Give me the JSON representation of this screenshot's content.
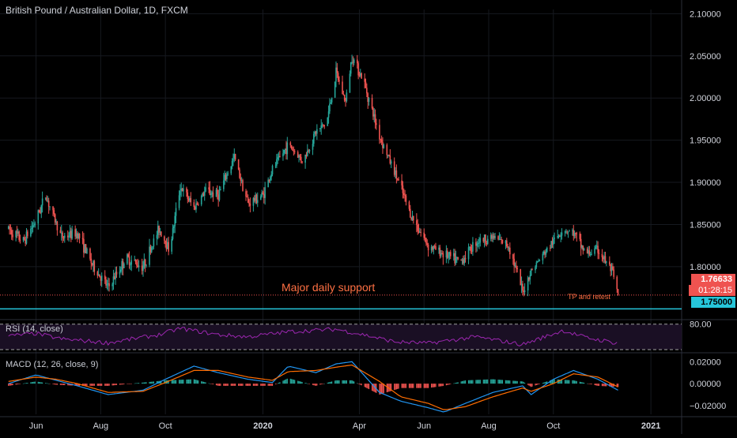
{
  "title": "British Pound / Australian Dollar, 1D, FXCM",
  "chart_data": {
    "type": "candlestick",
    "title": "British Pound / Australian Dollar, 1D, FXCM",
    "x_labels": [
      "Jun",
      "Aug",
      "Oct",
      "2020",
      "Apr",
      "Jun",
      "Aug",
      "Oct",
      "2021"
    ],
    "price_axis": {
      "ticks": [
        "2.10000",
        "2.05000",
        "2.00000",
        "1.95000",
        "1.90000",
        "1.85000",
        "1.80000"
      ],
      "ylim": [
        1.74,
        2.105
      ]
    },
    "last_price": "1.76633",
    "countdown": "01:28:15",
    "support_level": "1.75000",
    "annotations": {
      "support": "Major daily support",
      "tp": "TP and retest"
    },
    "price_path": [
      [
        "2019-05-06",
        1.845
      ],
      [
        "2019-05-20",
        1.83
      ],
      [
        "2019-06-01",
        1.855
      ],
      [
        "2019-06-10",
        1.885
      ],
      [
        "2019-06-25",
        1.835
      ],
      [
        "2019-07-10",
        1.84
      ],
      [
        "2019-07-25",
        1.8
      ],
      [
        "2019-08-08",
        1.775
      ],
      [
        "2019-08-25",
        1.81
      ],
      [
        "2019-09-10",
        1.8
      ],
      [
        "2019-09-25",
        1.845
      ],
      [
        "2019-10-05",
        1.82
      ],
      [
        "2019-10-15",
        1.895
      ],
      [
        "2019-10-28",
        1.87
      ],
      [
        "2019-11-08",
        1.89
      ],
      [
        "2019-11-20",
        1.885
      ],
      [
        "2019-12-05",
        1.93
      ],
      [
        "2019-12-18",
        1.875
      ],
      [
        "2020-01-01",
        1.885
      ],
      [
        "2020-01-10",
        1.915
      ],
      [
        "2020-01-25",
        1.945
      ],
      [
        "2020-02-08",
        1.925
      ],
      [
        "2020-02-20",
        1.96
      ],
      [
        "2020-03-01",
        1.97
      ],
      [
        "2020-03-10",
        2.03
      ],
      [
        "2020-03-19",
        1.995
      ],
      [
        "2020-03-25",
        2.05
      ],
      [
        "2020-04-05",
        2.02
      ],
      [
        "2020-04-20",
        1.955
      ],
      [
        "2020-05-05",
        1.91
      ],
      [
        "2020-05-20",
        1.86
      ],
      [
        "2020-06-05",
        1.825
      ],
      [
        "2020-06-20",
        1.815
      ],
      [
        "2020-07-05",
        1.805
      ],
      [
        "2020-07-20",
        1.83
      ],
      [
        "2020-08-05",
        1.835
      ],
      [
        "2020-08-20",
        1.825
      ],
      [
        "2020-09-02",
        1.77
      ],
      [
        "2020-09-10",
        1.795
      ],
      [
        "2020-09-25",
        1.82
      ],
      [
        "2020-10-10",
        1.845
      ],
      [
        "2020-10-20",
        1.84
      ],
      [
        "2020-11-01",
        1.815
      ],
      [
        "2020-11-12",
        1.82
      ],
      [
        "2020-11-25",
        1.795
      ],
      [
        "2020-12-01",
        1.766
      ]
    ],
    "rsi": {
      "label": "RSI (14, close)",
      "level_labels": [
        "80.00"
      ],
      "ylim": [
        20,
        85
      ],
      "bands": [
        80,
        20
      ],
      "path": [
        [
          "2019-05-06",
          52
        ],
        [
          "2019-06-01",
          58
        ],
        [
          "2019-06-25",
          45
        ],
        [
          "2019-08-08",
          36
        ],
        [
          "2019-09-25",
          55
        ],
        [
          "2019-10-15",
          70
        ],
        [
          "2019-11-20",
          55
        ],
        [
          "2019-12-18",
          50
        ],
        [
          "2020-01-25",
          62
        ],
        [
          "2020-03-10",
          68
        ],
        [
          "2020-04-05",
          55
        ],
        [
          "2020-05-05",
          38
        ],
        [
          "2020-06-05",
          35
        ],
        [
          "2020-07-20",
          50
        ],
        [
          "2020-09-02",
          32
        ],
        [
          "2020-10-10",
          65
        ],
        [
          "2020-11-01",
          48
        ],
        [
          "2020-12-01",
          35
        ]
      ]
    },
    "macd": {
      "label": "MACD (12, 26, close, 9)",
      "ticks": [
        "0.02000",
        "0.00000",
        "−0.02000"
      ],
      "ylim": [
        -0.028,
        0.026
      ],
      "macd_line": [
        [
          "2019-05-06",
          0.0
        ],
        [
          "2019-06-01",
          0.008
        ],
        [
          "2019-06-20",
          0.003
        ],
        [
          "2019-07-10",
          -0.002
        ],
        [
          "2019-08-08",
          -0.01
        ],
        [
          "2019-09-10",
          -0.006
        ],
        [
          "2019-10-01",
          0.004
        ],
        [
          "2019-10-28",
          0.016
        ],
        [
          "2019-11-20",
          0.01
        ],
        [
          "2019-12-18",
          0.004
        ],
        [
          "2020-01-10",
          0.001
        ],
        [
          "2020-01-25",
          0.016
        ],
        [
          "2020-02-20",
          0.01
        ],
        [
          "2020-03-10",
          0.018
        ],
        [
          "2020-03-25",
          0.02
        ],
        [
          "2020-04-20",
          -0.008
        ],
        [
          "2020-05-10",
          -0.016
        ],
        [
          "2020-06-05",
          -0.022
        ],
        [
          "2020-06-20",
          -0.026
        ],
        [
          "2020-07-10",
          -0.018
        ],
        [
          "2020-08-05",
          -0.008
        ],
        [
          "2020-09-02",
          -0.002
        ],
        [
          "2020-09-10",
          -0.01
        ],
        [
          "2020-10-01",
          0.004
        ],
        [
          "2020-10-20",
          0.012
        ],
        [
          "2020-11-12",
          0.004
        ],
        [
          "2020-12-01",
          -0.006
        ]
      ],
      "signal_line": [
        [
          "2019-05-06",
          0.002
        ],
        [
          "2019-06-01",
          0.006
        ],
        [
          "2019-06-20",
          0.004
        ],
        [
          "2019-07-10",
          0.0
        ],
        [
          "2019-08-08",
          -0.008
        ],
        [
          "2019-09-10",
          -0.007
        ],
        [
          "2019-10-01",
          0.001
        ],
        [
          "2019-10-28",
          0.012
        ],
        [
          "2019-11-20",
          0.012
        ],
        [
          "2019-12-18",
          0.006
        ],
        [
          "2020-01-10",
          0.003
        ],
        [
          "2020-01-25",
          0.011
        ],
        [
          "2020-02-20",
          0.012
        ],
        [
          "2020-03-10",
          0.015
        ],
        [
          "2020-03-25",
          0.017
        ],
        [
          "2020-04-20",
          0.002
        ],
        [
          "2020-05-10",
          -0.012
        ],
        [
          "2020-06-05",
          -0.018
        ],
        [
          "2020-06-20",
          -0.024
        ],
        [
          "2020-07-10",
          -0.021
        ],
        [
          "2020-08-05",
          -0.012
        ],
        [
          "2020-09-02",
          -0.004
        ],
        [
          "2020-09-10",
          -0.007
        ],
        [
          "2020-10-01",
          0.0
        ],
        [
          "2020-10-20",
          0.009
        ],
        [
          "2020-11-12",
          0.006
        ],
        [
          "2020-12-01",
          -0.003
        ]
      ]
    },
    "colors": {
      "up": "#26a69a",
      "down": "#ef5350",
      "support_line": "#26c6da",
      "rsi": "#9c27b0",
      "rsi_bg": "#1a0f24",
      "macd": "#2196f3",
      "signal": "#ff6d00",
      "annotation": "#ff7043",
      "grid": "#16191f",
      "axis_text": "#d1d4dc"
    }
  }
}
